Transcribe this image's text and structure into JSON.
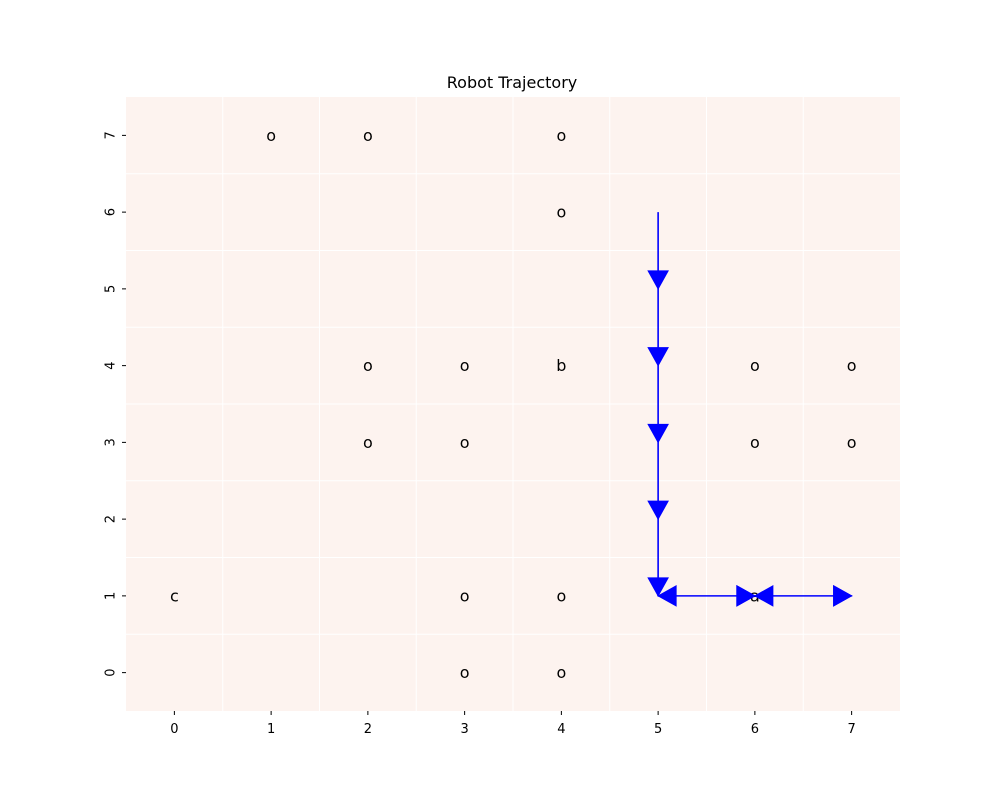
{
  "chart_data": {
    "type": "heatmap",
    "title": "Robot Trajectory",
    "xlabel": "",
    "ylabel": "",
    "x_ticks": [
      "0",
      "1",
      "2",
      "3",
      "4",
      "5",
      "6",
      "7"
    ],
    "y_ticks": [
      "0",
      "1",
      "2",
      "3",
      "4",
      "5",
      "6",
      "7"
    ],
    "xlim": [
      -0.5,
      7.5
    ],
    "ylim": [
      -0.5,
      7.5
    ],
    "grid": true,
    "colors": {
      "cell_fill": "#fdf3ef",
      "grid_line": "#ffffff",
      "path": "#0000ff"
    },
    "cells": [
      {
        "x": 1,
        "y": 7,
        "label": "o"
      },
      {
        "x": 2,
        "y": 7,
        "label": "o"
      },
      {
        "x": 4,
        "y": 7,
        "label": "o"
      },
      {
        "x": 4,
        "y": 6,
        "label": "o"
      },
      {
        "x": 2,
        "y": 4,
        "label": "o"
      },
      {
        "x": 3,
        "y": 4,
        "label": "o"
      },
      {
        "x": 4,
        "y": 4,
        "label": "b"
      },
      {
        "x": 6,
        "y": 4,
        "label": "o"
      },
      {
        "x": 7,
        "y": 4,
        "label": "o"
      },
      {
        "x": 2,
        "y": 3,
        "label": "o"
      },
      {
        "x": 3,
        "y": 3,
        "label": "o"
      },
      {
        "x": 6,
        "y": 3,
        "label": "o"
      },
      {
        "x": 7,
        "y": 3,
        "label": "o"
      },
      {
        "x": 0,
        "y": 1,
        "label": "c"
      },
      {
        "x": 3,
        "y": 1,
        "label": "o"
      },
      {
        "x": 4,
        "y": 1,
        "label": "o"
      },
      {
        "x": 6,
        "y": 1,
        "label": "a"
      },
      {
        "x": 3,
        "y": 0,
        "label": "o"
      },
      {
        "x": 4,
        "y": 0,
        "label": "o"
      }
    ],
    "trajectory": [
      {
        "x": 5,
        "y": 6
      },
      {
        "x": 5,
        "y": 5
      },
      {
        "x": 5,
        "y": 4
      },
      {
        "x": 5,
        "y": 3
      },
      {
        "x": 5,
        "y": 2
      },
      {
        "x": 5,
        "y": 1
      },
      {
        "x": 6,
        "y": 1
      },
      {
        "x": 7,
        "y": 1
      },
      {
        "x": 6,
        "y": 1
      },
      {
        "x": 5,
        "y": 1
      },
      {
        "x": 6,
        "y": 1
      },
      {
        "x": 7,
        "y": 1
      }
    ]
  }
}
